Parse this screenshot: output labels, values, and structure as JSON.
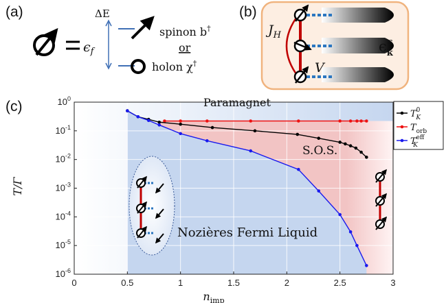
{
  "panel_a": {
    "letter": "(a)",
    "epsilon_f": "ϵ",
    "epsilon_f_sub": "f",
    "delta_e": "ΔE",
    "spinon_label": "spinon b",
    "spinon_sup": "†",
    "or_label": "or",
    "holon_label": "holon χ",
    "holon_sup": "†"
  },
  "panel_b": {
    "letter": "(b)",
    "jh_label": "J",
    "jh_sub": "H",
    "v_label": "V",
    "eps_label": "ϵ",
    "eps_sub": "k",
    "eps_sup": "c",
    "accent_color": "#c00000",
    "border_color": "#f0b37e",
    "fill_color": "#fdeee2"
  },
  "panel_c": {
    "letter": "(c)",
    "region_top": "Paramagnet",
    "region_sos": "S.O.S.",
    "region_nfl": "Nozières Fermi Liquid",
    "xlabel": "n",
    "xlabel_sub": "imp",
    "ylabel": "T/Γ"
  },
  "chart_data": {
    "type": "line",
    "xlim": [
      0,
      3
    ],
    "ylim": [
      1e-06,
      1
    ],
    "yscale": "log",
    "grid": true,
    "legend_position": "right",
    "x_ticks": [
      "0",
      "0.5",
      "1",
      "1.5",
      "2",
      "2.5",
      "3"
    ],
    "y_ticks": [
      {
        "base": "10",
        "exp": "0"
      },
      {
        "base": "10",
        "exp": "-1"
      },
      {
        "base": "10",
        "exp": "-2"
      },
      {
        "base": "10",
        "exp": "-3"
      },
      {
        "base": "10",
        "exp": "-4"
      },
      {
        "base": "10",
        "exp": "-5"
      },
      {
        "base": "10",
        "exp": "-6"
      }
    ],
    "series": [
      {
        "name": "T_K^0",
        "legend_main": "T",
        "legend_sub": "K",
        "legend_sup": "0",
        "color": "#000000",
        "x": [
          0.5,
          0.6,
          0.7,
          0.8,
          1.0,
          1.3,
          1.7,
          2.1,
          2.3,
          2.5,
          2.55,
          2.6,
          2.65,
          2.7,
          2.75
        ],
        "y": [
          0.5,
          0.31,
          0.25,
          0.2,
          0.17,
          0.13,
          0.1,
          0.075,
          0.055,
          0.04,
          0.035,
          0.03,
          0.025,
          0.018,
          0.012
        ]
      },
      {
        "name": "T_orb",
        "legend_main": "T",
        "legend_sub": "orb",
        "legend_sup": "",
        "color": "#ee1111",
        "x": [
          0.85,
          1.0,
          1.25,
          1.66,
          2.11,
          2.5,
          2.6,
          2.66,
          2.7,
          2.75
        ],
        "y": [
          0.22,
          0.22,
          0.22,
          0.22,
          0.22,
          0.22,
          0.22,
          0.22,
          0.22,
          0.22
        ]
      },
      {
        "name": "T_K^eff",
        "legend_main": "T",
        "legend_sub": "K",
        "legend_sup": "eff",
        "color": "#1a1aee",
        "x": [
          0.5,
          0.6,
          0.7,
          0.8,
          1.0,
          1.25,
          1.66,
          2.11,
          2.3,
          2.5,
          2.6,
          2.66,
          2.75
        ],
        "y": [
          0.5,
          0.31,
          0.23,
          0.16,
          0.08,
          0.045,
          0.02,
          0.0045,
          0.0008,
          0.00012,
          3e-05,
          1e-05,
          2e-06
        ]
      }
    ]
  }
}
